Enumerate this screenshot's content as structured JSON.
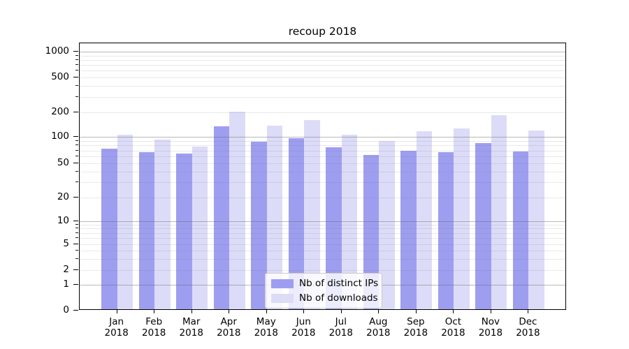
{
  "title": "recoup 2018",
  "legend": {
    "items": [
      {
        "label": "Nb of distinct IPs",
        "color": "#9e9ef0"
      },
      {
        "label": "Nb of downloads",
        "color": "#dcdcf8"
      }
    ]
  },
  "y_axis": {
    "tick_values": [
      0,
      1,
      2,
      5,
      10,
      20,
      50,
      100,
      200,
      500,
      1000
    ]
  },
  "x_axis": {
    "year": "2018",
    "months": [
      "Jan",
      "Feb",
      "Mar",
      "Apr",
      "May",
      "Jun",
      "Jul",
      "Aug",
      "Sep",
      "Oct",
      "Nov",
      "Dec"
    ]
  },
  "chart_data": {
    "type": "bar",
    "title": "recoup 2018",
    "categories": [
      "Jan 2018",
      "Feb 2018",
      "Mar 2018",
      "Apr 2018",
      "May 2018",
      "Jun 2018",
      "Jul 2018",
      "Aug 2018",
      "Sep 2018",
      "Oct 2018",
      "Nov 2018",
      "Dec 2018"
    ],
    "series": [
      {
        "name": "Nb of distinct IPs",
        "color": "#9e9ef0",
        "values": [
          71,
          65,
          62,
          130,
          85,
          93,
          73,
          60,
          67,
          65,
          82,
          66
        ]
      },
      {
        "name": "Nb of downloads",
        "color": "#dcdcf8",
        "values": [
          103,
          90,
          75,
          196,
          132,
          155,
          102,
          87,
          112,
          122,
          178,
          115
        ]
      }
    ],
    "xlabel": "",
    "ylabel": "",
    "yscale": "symlog",
    "y_ticks": [
      0,
      1,
      2,
      5,
      10,
      20,
      50,
      100,
      200,
      500,
      1000
    ],
    "ylim": [
      0,
      1400
    ],
    "grid": true,
    "gridlines_above_bars": true,
    "legend_position": "lower center"
  }
}
